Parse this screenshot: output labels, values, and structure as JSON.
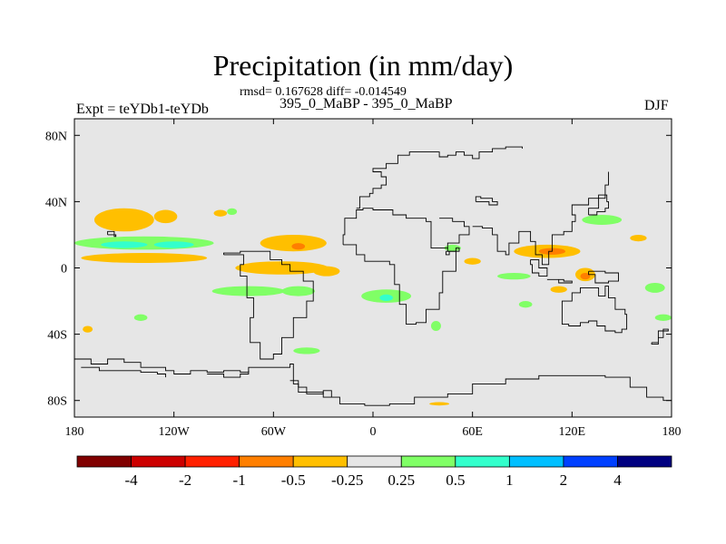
{
  "chart_data": {
    "type": "heatmap",
    "title": "Precipitation (in mm/day)",
    "stats": "rmsd= 0.167628 diff= -0.014549",
    "subtitle": "395_0_MaBP - 395_0_MaBP",
    "left_label": "Expt = teYDb1-teYDb",
    "right_label": "DJF",
    "xlim": [
      -180,
      180
    ],
    "ylim": [
      -90,
      90
    ],
    "x_ticks": [
      {
        "value": -180,
        "label": "180"
      },
      {
        "value": -120,
        "label": "120W"
      },
      {
        "value": -60,
        "label": "60W"
      },
      {
        "value": 0,
        "label": "0"
      },
      {
        "value": 60,
        "label": "60E"
      },
      {
        "value": 120,
        "label": "120E"
      },
      {
        "value": 180,
        "label": "180"
      }
    ],
    "y_ticks": [
      {
        "value": 80,
        "label": "80N"
      },
      {
        "value": 40,
        "label": "40N"
      },
      {
        "value": 0,
        "label": "0"
      },
      {
        "value": -40,
        "label": "40S"
      },
      {
        "value": -80,
        "label": "80S"
      }
    ],
    "colorbar": {
      "colors": [
        "#800000",
        "#cc0000",
        "#ff2000",
        "#ff7f00",
        "#ffbf00",
        "#e6e6e6",
        "#80ff66",
        "#33ffcc",
        "#00bfff",
        "#0040ff",
        "#000080"
      ],
      "labels": [
        "-4",
        "-2",
        "-1",
        "-0.5",
        "-0.25",
        "0.25",
        "0.5",
        "1",
        "2",
        "4"
      ],
      "label_boundary_index": [
        1,
        2,
        3,
        4,
        5,
        6,
        7,
        8,
        9,
        10
      ]
    },
    "anomalies": [
      {
        "lon": -150,
        "lat": 29,
        "rlon": 18,
        "rlat": 7,
        "value": -0.3
      },
      {
        "lon": -125,
        "lat": 31,
        "rlon": 7,
        "rlat": 4,
        "value": -0.3
      },
      {
        "lon": -92,
        "lat": 33,
        "rlon": 4,
        "rlat": 2,
        "value": -0.3
      },
      {
        "lon": -138,
        "lat": 15,
        "rlon": 42,
        "rlat": 4,
        "value": 0.4
      },
      {
        "lon": -150,
        "lat": 14,
        "rlon": 14,
        "rlat": 2,
        "value": 0.7
      },
      {
        "lon": -120,
        "lat": 14,
        "rlon": 12,
        "rlat": 2,
        "value": 0.7
      },
      {
        "lon": -138,
        "lat": 6,
        "rlon": 38,
        "rlat": 3,
        "value": -0.3
      },
      {
        "lon": -48,
        "lat": 15,
        "rlon": 20,
        "rlat": 5,
        "value": -0.3
      },
      {
        "lon": -45,
        "lat": 13,
        "rlon": 4,
        "rlat": 2,
        "value": -0.6
      },
      {
        "lon": -55,
        "lat": 0,
        "rlon": 28,
        "rlat": 4,
        "value": -0.3
      },
      {
        "lon": -28,
        "lat": -2,
        "rlon": 8,
        "rlat": 3,
        "value": -0.3
      },
      {
        "lon": -75,
        "lat": -14,
        "rlon": 22,
        "rlat": 3,
        "value": 0.35
      },
      {
        "lon": -45,
        "lat": -14,
        "rlon": 10,
        "rlat": 3,
        "value": 0.35
      },
      {
        "lon": 8,
        "lat": -17,
        "rlon": 15,
        "rlat": 4,
        "value": 0.35
      },
      {
        "lon": 8,
        "lat": -18,
        "rlon": 4,
        "rlat": 2,
        "value": 0.8
      },
      {
        "lon": 105,
        "lat": 10,
        "rlon": 20,
        "rlat": 4,
        "value": -0.3
      },
      {
        "lon": 108,
        "lat": 10,
        "rlon": 8,
        "rlat": 2,
        "value": -0.6
      },
      {
        "lon": 128,
        "lat": -4,
        "rlon": 6,
        "rlat": 4,
        "value": -0.3
      },
      {
        "lon": 128,
        "lat": -5,
        "rlon": 3,
        "rlat": 2,
        "value": -0.6
      },
      {
        "lon": 112,
        "lat": -13,
        "rlon": 5,
        "rlat": 2,
        "value": -0.3
      },
      {
        "lon": 138,
        "lat": 29,
        "rlon": 12,
        "rlat": 3,
        "value": 0.35
      },
      {
        "lon": 160,
        "lat": 18,
        "rlon": 5,
        "rlat": 2,
        "value": -0.3
      },
      {
        "lon": 85,
        "lat": -5,
        "rlon": 10,
        "rlat": 2,
        "value": 0.35
      },
      {
        "lon": 92,
        "lat": -22,
        "rlon": 4,
        "rlat": 2,
        "value": 0.35
      },
      {
        "lon": 48,
        "lat": 12,
        "rlon": 5,
        "rlat": 2,
        "value": 0.35
      },
      {
        "lon": 60,
        "lat": 4,
        "rlon": 5,
        "rlat": 2,
        "value": -0.3
      },
      {
        "lon": 38,
        "lat": -35,
        "rlon": 3,
        "rlat": 3,
        "value": 0.35
      },
      {
        "lon": -140,
        "lat": -30,
        "rlon": 4,
        "rlat": 2,
        "value": 0.35
      },
      {
        "lon": -172,
        "lat": -37,
        "rlon": 3,
        "rlat": 2,
        "value": -0.3
      },
      {
        "lon": -40,
        "lat": -50,
        "rlon": 8,
        "rlat": 2,
        "value": 0.35
      },
      {
        "lon": 40,
        "lat": -82,
        "rlon": 6,
        "rlat": 1,
        "value": -0.3
      },
      {
        "lon": -85,
        "lat": 34,
        "rlon": 3,
        "rlat": 2,
        "value": 0.35
      },
      {
        "lon": 170,
        "lat": -12,
        "rlon": 6,
        "rlat": 3,
        "value": 0.35
      },
      {
        "lon": 175,
        "lat": -30,
        "rlon": 5,
        "rlat": 2,
        "value": 0.35
      }
    ],
    "coastlines": [
      [
        [
          -180,
          -55
        ],
        [
          -170,
          -58
        ],
        [
          -160,
          -55
        ],
        [
          -150,
          -57
        ],
        [
          -140,
          -60
        ],
        [
          -125,
          -62
        ],
        [
          -120,
          -64
        ],
        [
          -115,
          -64
        ],
        [
          -110,
          -62
        ],
        [
          -100,
          -63
        ],
        [
          -90,
          -62
        ],
        [
          -80,
          -63
        ],
        [
          -75,
          -60
        ],
        [
          -60,
          -60
        ],
        [
          -50,
          -58
        ],
        [
          -48,
          -70
        ],
        [
          -45,
          -75
        ],
        [
          -30,
          -78
        ],
        [
          -20,
          -82
        ],
        [
          -5,
          -83
        ],
        [
          10,
          -82
        ],
        [
          25,
          -78
        ],
        [
          45,
          -76
        ],
        [
          60,
          -70
        ],
        [
          80,
          -67
        ],
        [
          100,
          -65
        ],
        [
          120,
          -65
        ],
        [
          140,
          -66
        ],
        [
          155,
          -72
        ],
        [
          165,
          -78
        ],
        [
          175,
          -80
        ],
        [
          180,
          -80
        ]
      ],
      [
        [
          -176,
          -60
        ],
        [
          -165,
          -62
        ],
        [
          -150,
          -62
        ],
        [
          -140,
          -63
        ],
        [
          -130,
          -64
        ],
        [
          -125,
          -66
        ]
      ],
      [
        [
          -100,
          -64
        ],
        [
          -90,
          -66
        ],
        [
          -80,
          -64
        ],
        [
          -75,
          -62
        ]
      ],
      [
        [
          -50,
          -68
        ],
        [
          -45,
          -72
        ],
        [
          -40,
          -76
        ],
        [
          -30,
          -74
        ],
        [
          -25,
          -78
        ]
      ],
      [
        [
          -90,
          8
        ],
        [
          -82,
          8
        ],
        [
          -78,
          2
        ],
        [
          -80,
          -5
        ],
        [
          -76,
          -18
        ],
        [
          -72,
          -30
        ],
        [
          -74,
          -45
        ],
        [
          -68,
          -55
        ],
        [
          -60,
          -52
        ],
        [
          -55,
          -42
        ],
        [
          -48,
          -30
        ],
        [
          -40,
          -20
        ],
        [
          -36,
          -8
        ],
        [
          -42,
          -2
        ],
        [
          -50,
          2
        ],
        [
          -55,
          5
        ],
        [
          -62,
          10
        ],
        [
          -72,
          10
        ],
        [
          -80,
          9
        ],
        [
          -90,
          8
        ]
      ],
      [
        [
          -18,
          14
        ],
        [
          -10,
          8
        ],
        [
          -5,
          4
        ],
        [
          5,
          4
        ],
        [
          10,
          2
        ],
        [
          13,
          -10
        ],
        [
          16,
          -22
        ],
        [
          20,
          -34
        ],
        [
          26,
          -33
        ],
        [
          32,
          -25
        ],
        [
          40,
          -15
        ],
        [
          42,
          -2
        ],
        [
          50,
          10
        ],
        [
          45,
          12
        ],
        [
          35,
          28
        ],
        [
          32,
          30
        ],
        [
          20,
          32
        ],
        [
          12,
          35
        ],
        [
          0,
          36
        ],
        [
          -6,
          35
        ],
        [
          -10,
          30
        ],
        [
          -17,
          20
        ],
        [
          -18,
          14
        ]
      ],
      [
        [
          -10,
          36
        ],
        [
          -8,
          43
        ],
        [
          -2,
          45
        ],
        [
          0,
          48
        ],
        [
          5,
          50
        ],
        [
          8,
          55
        ],
        [
          5,
          58
        ],
        [
          0,
          60
        ],
        [
          8,
          63
        ],
        [
          15,
          68
        ],
        [
          22,
          70
        ],
        [
          30,
          70
        ],
        [
          40,
          67
        ],
        [
          45,
          68
        ],
        [
          50,
          70
        ],
        [
          55,
          68
        ],
        [
          60,
          66
        ],
        [
          64,
          70
        ],
        [
          72,
          72
        ],
        [
          80,
          73
        ],
        [
          90,
          72
        ]
      ],
      [
        [
          40,
          30
        ],
        [
          48,
          28
        ],
        [
          55,
          25
        ],
        [
          58,
          20
        ],
        [
          52,
          15
        ],
        [
          45,
          12
        ]
      ],
      [
        [
          60,
          25
        ],
        [
          66,
          24
        ],
        [
          72,
          20
        ],
        [
          75,
          10
        ],
        [
          80,
          8
        ],
        [
          82,
          15
        ],
        [
          88,
          22
        ],
        [
          92,
          22
        ],
        [
          95,
          16
        ],
        [
          98,
          8
        ],
        [
          102,
          2
        ],
        [
          104,
          2
        ],
        [
          106,
          10
        ],
        [
          108,
          15
        ],
        [
          108,
          20
        ],
        [
          115,
          22
        ],
        [
          120,
          28
        ],
        [
          122,
          32
        ],
        [
          120,
          38
        ],
        [
          126,
          38
        ],
        [
          130,
          42
        ],
        [
          140,
          50
        ],
        [
          142,
          58
        ]
      ],
      [
        [
          114,
          -22
        ],
        [
          114,
          -34
        ],
        [
          118,
          -35
        ],
        [
          125,
          -33
        ],
        [
          130,
          -32
        ],
        [
          135,
          -35
        ],
        [
          140,
          -38
        ],
        [
          146,
          -39
        ],
        [
          150,
          -37
        ],
        [
          153,
          -28
        ],
        [
          152,
          -25
        ],
        [
          146,
          -18
        ],
        [
          142,
          -11
        ],
        [
          140,
          -17
        ],
        [
          136,
          -12
        ],
        [
          130,
          -12
        ],
        [
          125,
          -15
        ],
        [
          120,
          -20
        ],
        [
          114,
          -22
        ]
      ],
      [
        [
          95,
          5
        ],
        [
          100,
          0
        ],
        [
          105,
          -5
        ],
        [
          100,
          -3
        ],
        [
          96,
          2
        ],
        [
          95,
          5
        ]
      ],
      [
        [
          105,
          -7
        ],
        [
          115,
          -8
        ],
        [
          120,
          -9
        ],
        [
          112,
          -7
        ],
        [
          105,
          -7
        ]
      ],
      [
        [
          130,
          -2
        ],
        [
          140,
          -3
        ],
        [
          148,
          -8
        ],
        [
          142,
          -9
        ],
        [
          134,
          -4
        ],
        [
          130,
          -2
        ]
      ],
      [
        [
          130,
          32
        ],
        [
          135,
          34
        ],
        [
          140,
          36
        ],
        [
          142,
          40
        ],
        [
          141,
          44
        ],
        [
          136,
          36
        ],
        [
          130,
          32
        ]
      ],
      [
        [
          -160,
          20
        ],
        [
          -155,
          19
        ],
        [
          -156,
          22
        ],
        [
          -160,
          20
        ]
      ],
      [
        [
          168,
          -45
        ],
        [
          172,
          -42
        ],
        [
          175,
          -37
        ],
        [
          178,
          -38
        ],
        [
          172,
          -46
        ],
        [
          168,
          -45
        ]
      ],
      [
        [
          62,
          40
        ],
        [
          70,
          38
        ],
        [
          75,
          40
        ],
        [
          72,
          42
        ],
        [
          65,
          43
        ],
        [
          62,
          40
        ]
      ],
      [
        [
          44,
          10
        ],
        [
          50,
          12
        ],
        [
          52,
          10
        ],
        [
          46,
          8
        ],
        [
          44,
          10
        ]
      ]
    ]
  }
}
